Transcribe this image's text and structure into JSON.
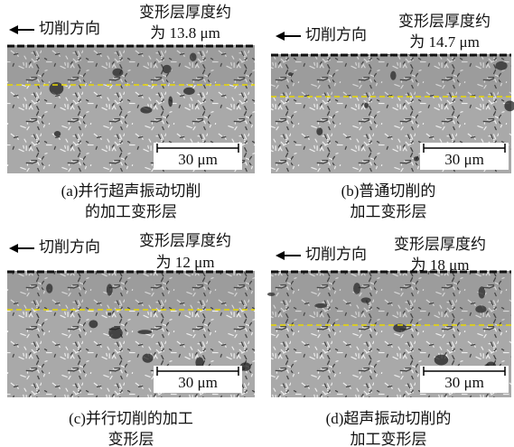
{
  "panels": [
    {
      "direction": "切削方向",
      "thickness": [
        "变形层厚度约",
        "为 13.8 μm"
      ],
      "scale": "30 μm",
      "caption": [
        "(a)并行超声振动切削",
        "的加工变形层"
      ]
    },
    {
      "direction": "切削方向",
      "thickness": [
        "变形层厚度约",
        "为 14.7 μm"
      ],
      "scale": "30 μm",
      "caption": [
        "(b)普通切削的",
        "加工变形层"
      ]
    },
    {
      "direction": "切削方向",
      "thickness": [
        "变形层厚度约",
        "为 12 μm"
      ],
      "scale": "30 μm",
      "caption": [
        "(c)并行切削的加工",
        "变形层"
      ]
    },
    {
      "direction": "切削方向",
      "thickness": [
        "变形层厚度约",
        "为 18 μm"
      ],
      "scale": "30 μm",
      "caption": [
        "(d)超声振动切削的",
        "加工变形层"
      ]
    }
  ]
}
